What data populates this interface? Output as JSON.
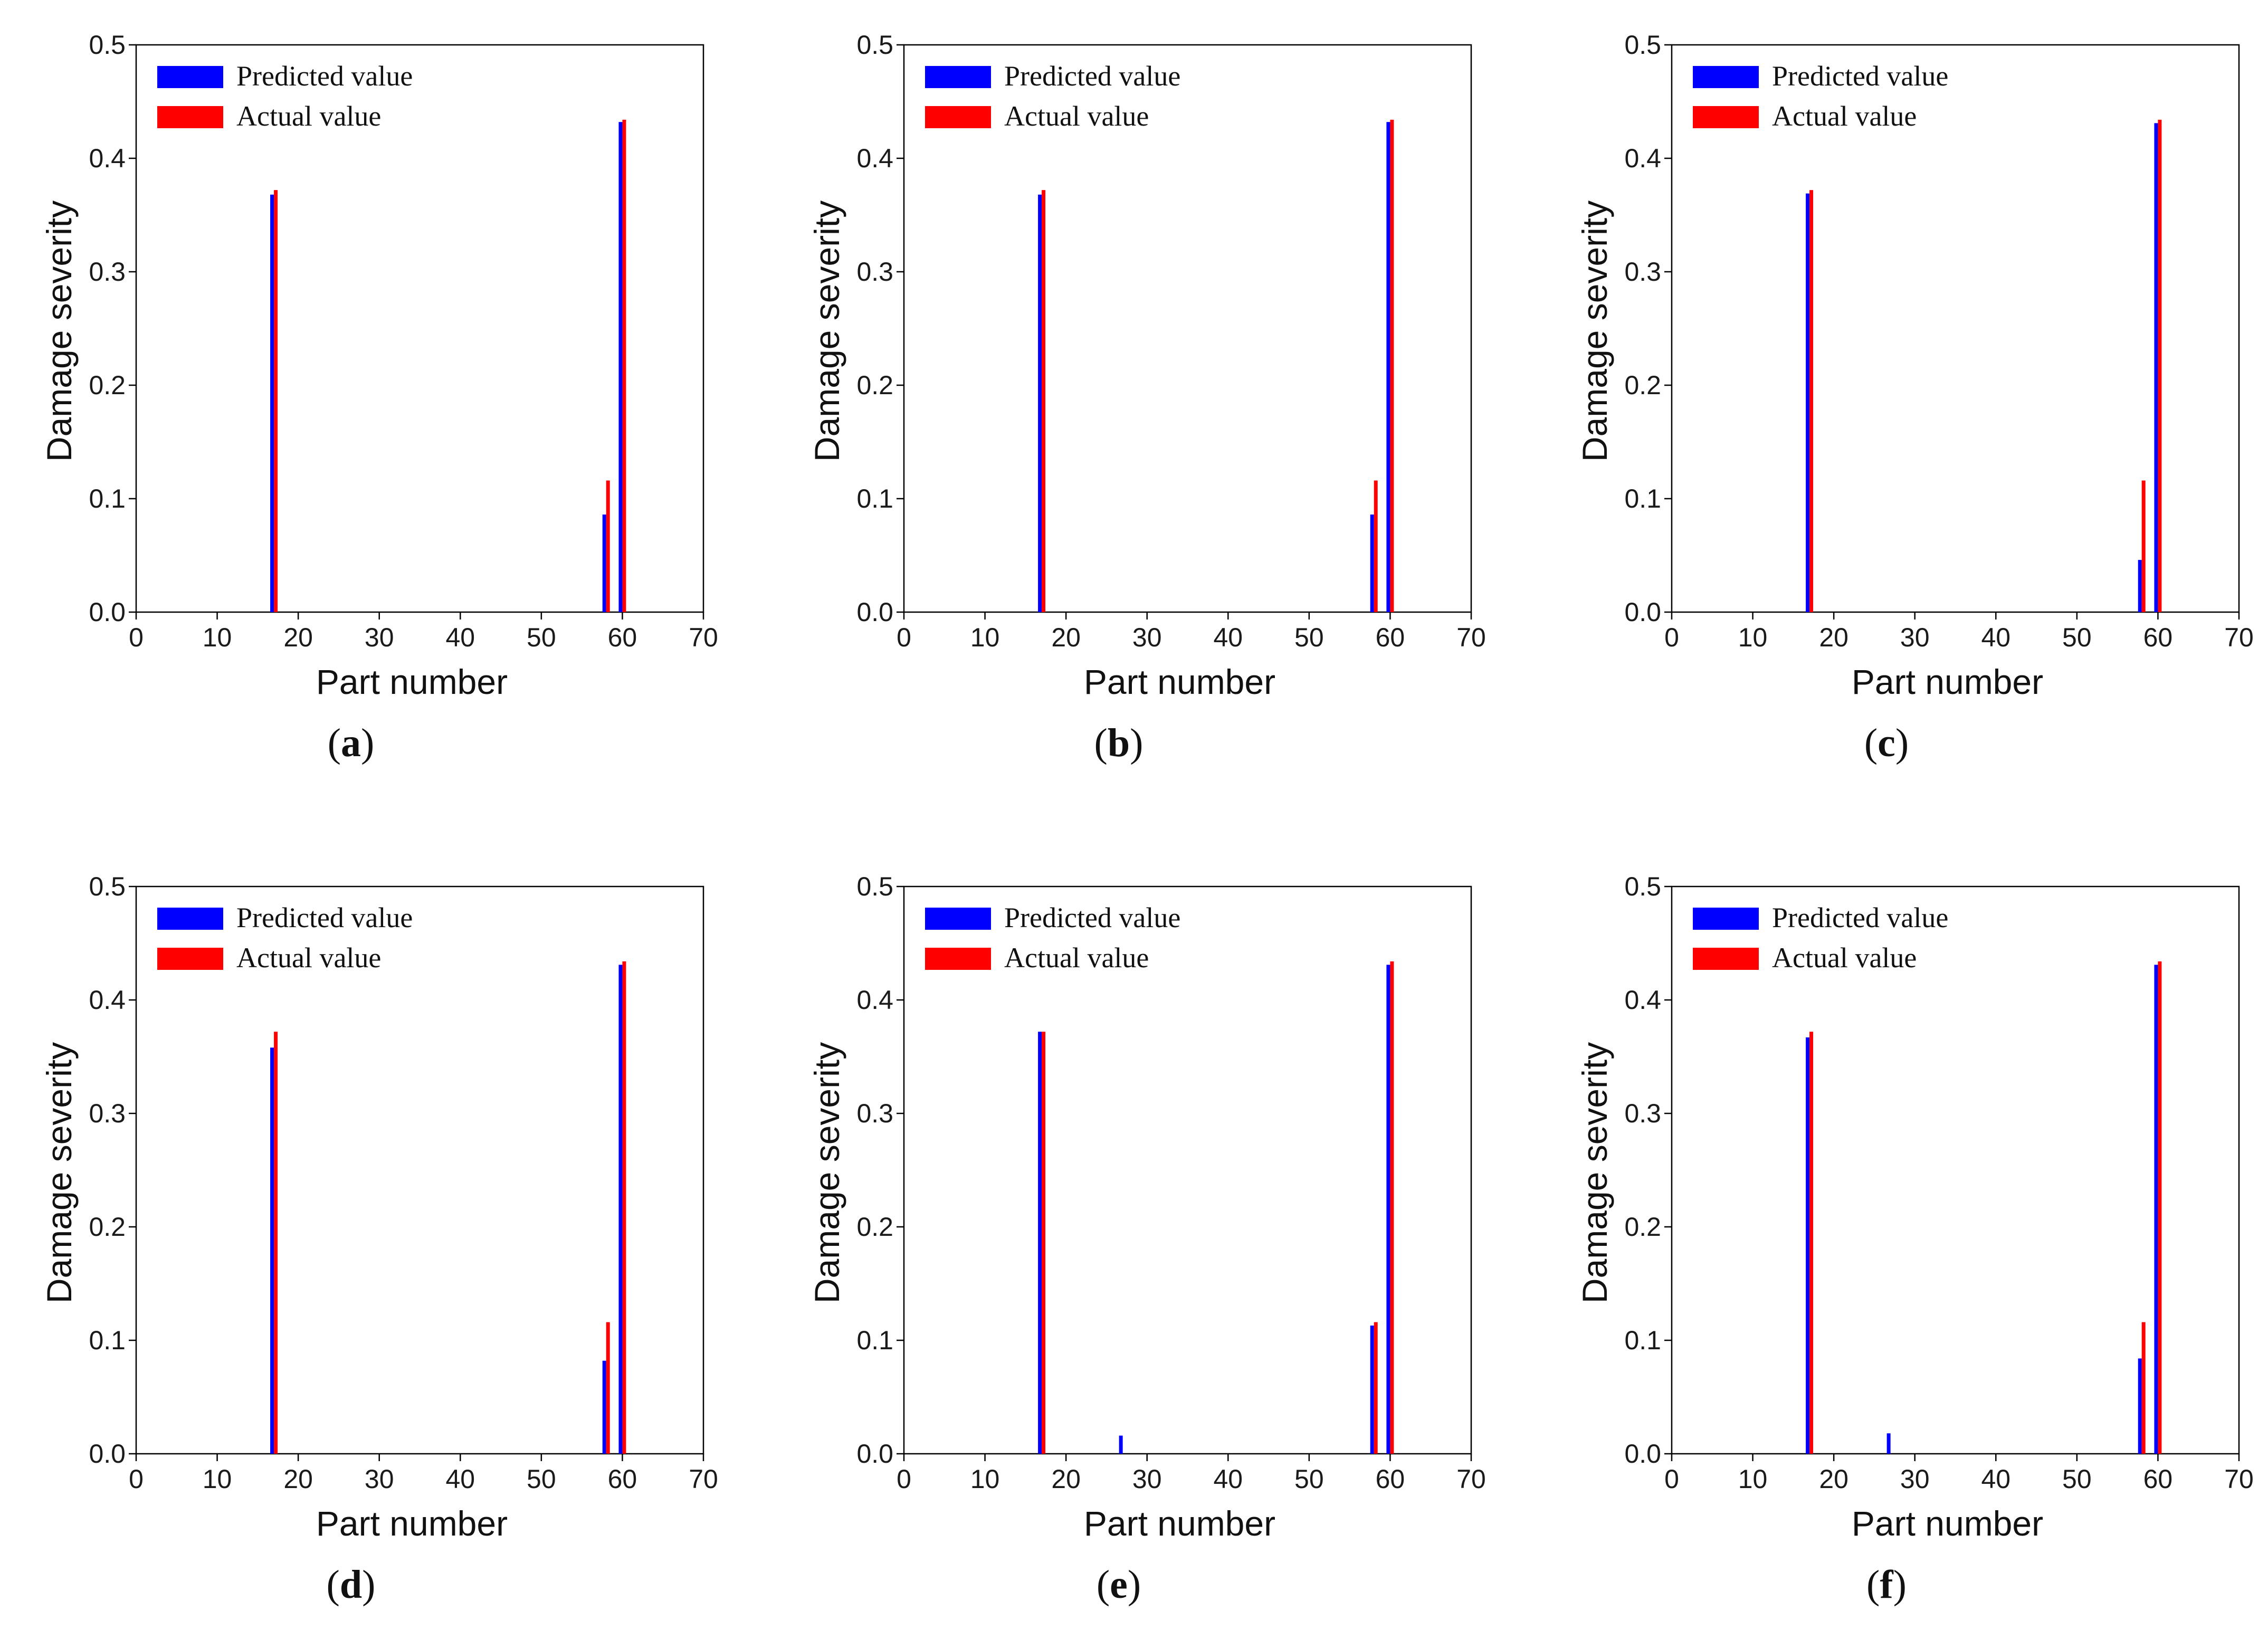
{
  "colors": {
    "predicted": "#0000ff",
    "actual": "#ff0000",
    "axis": "#000000"
  },
  "legend": {
    "predicted_label": "Predicted value",
    "actual_label": "Actual value"
  },
  "axes": {
    "xlabel": "Part number",
    "ylabel": "Damage severity",
    "x_ticks": [
      "0",
      "10",
      "20",
      "30",
      "40",
      "50",
      "60",
      "70"
    ],
    "y_ticks": [
      "0.0",
      "0.1",
      "0.2",
      "0.3",
      "0.4",
      "0.5"
    ]
  },
  "chart_data": [
    {
      "type": "bar",
      "panel": "a",
      "xlabel": "Part number",
      "ylabel": "Damage severity",
      "xlim": [
        0,
        70
      ],
      "ylim": [
        0,
        0.5
      ],
      "series": [
        {
          "name": "Predicted value",
          "points": [
            [
              17,
              0.368
            ],
            [
              58,
              0.086
            ],
            [
              60,
              0.432
            ]
          ]
        },
        {
          "name": "Actual value",
          "points": [
            [
              17,
              0.372
            ],
            [
              58,
              0.116
            ],
            [
              60,
              0.434
            ]
          ]
        }
      ]
    },
    {
      "type": "bar",
      "panel": "b",
      "xlabel": "Part number",
      "ylabel": "Damage severity",
      "xlim": [
        0,
        70
      ],
      "ylim": [
        0,
        0.5
      ],
      "series": [
        {
          "name": "Predicted value",
          "points": [
            [
              17,
              0.368
            ],
            [
              58,
              0.086
            ],
            [
              60,
              0.432
            ]
          ]
        },
        {
          "name": "Actual value",
          "points": [
            [
              17,
              0.372
            ],
            [
              58,
              0.116
            ],
            [
              60,
              0.434
            ]
          ]
        }
      ]
    },
    {
      "type": "bar",
      "panel": "c",
      "xlabel": "Part number",
      "ylabel": "Damage severity",
      "xlim": [
        0,
        70
      ],
      "ylim": [
        0,
        0.5
      ],
      "series": [
        {
          "name": "Predicted value",
          "points": [
            [
              17,
              0.369
            ],
            [
              58,
              0.046
            ],
            [
              60,
              0.431
            ]
          ]
        },
        {
          "name": "Actual value",
          "points": [
            [
              17,
              0.372
            ],
            [
              58,
              0.116
            ],
            [
              60,
              0.434
            ]
          ]
        }
      ]
    },
    {
      "type": "bar",
      "panel": "d",
      "xlabel": "Part number",
      "ylabel": "Damage severity",
      "xlim": [
        0,
        70
      ],
      "ylim": [
        0,
        0.5
      ],
      "series": [
        {
          "name": "Predicted value",
          "points": [
            [
              17,
              0.358
            ],
            [
              58,
              0.082
            ],
            [
              60,
              0.431
            ]
          ]
        },
        {
          "name": "Actual value",
          "points": [
            [
              17,
              0.372
            ],
            [
              58,
              0.116
            ],
            [
              60,
              0.434
            ]
          ]
        }
      ]
    },
    {
      "type": "bar",
      "panel": "e",
      "xlabel": "Part number",
      "ylabel": "Damage severity",
      "xlim": [
        0,
        70
      ],
      "ylim": [
        0,
        0.5
      ],
      "series": [
        {
          "name": "Predicted value",
          "points": [
            [
              17,
              0.372
            ],
            [
              27,
              0.016
            ],
            [
              58,
              0.113
            ],
            [
              60,
              0.431
            ]
          ]
        },
        {
          "name": "Actual value",
          "points": [
            [
              17,
              0.372
            ],
            [
              58,
              0.116
            ],
            [
              60,
              0.434
            ]
          ]
        }
      ]
    },
    {
      "type": "bar",
      "panel": "f",
      "xlabel": "Part number",
      "ylabel": "Damage severity",
      "xlim": [
        0,
        70
      ],
      "ylim": [
        0,
        0.5
      ],
      "series": [
        {
          "name": "Predicted value",
          "points": [
            [
              17,
              0.367
            ],
            [
              27,
              0.018
            ],
            [
              58,
              0.084
            ],
            [
              60,
              0.431
            ]
          ]
        },
        {
          "name": "Actual value",
          "points": [
            [
              17,
              0.372
            ],
            [
              58,
              0.116
            ],
            [
              60,
              0.434
            ]
          ]
        }
      ]
    }
  ],
  "panels": [
    {
      "caption_letter": "a",
      "caption_open": "(",
      "caption_close": ")"
    },
    {
      "caption_letter": "b",
      "caption_open": "(",
      "caption_close": ")"
    },
    {
      "caption_letter": "c",
      "caption_open": "(",
      "caption_close": ")"
    },
    {
      "caption_letter": "d",
      "caption_open": "(",
      "caption_close": ")"
    },
    {
      "caption_letter": "e",
      "caption_open": "(",
      "caption_close": ")"
    },
    {
      "caption_letter": "f",
      "caption_open": "(",
      "caption_close": ")"
    }
  ]
}
